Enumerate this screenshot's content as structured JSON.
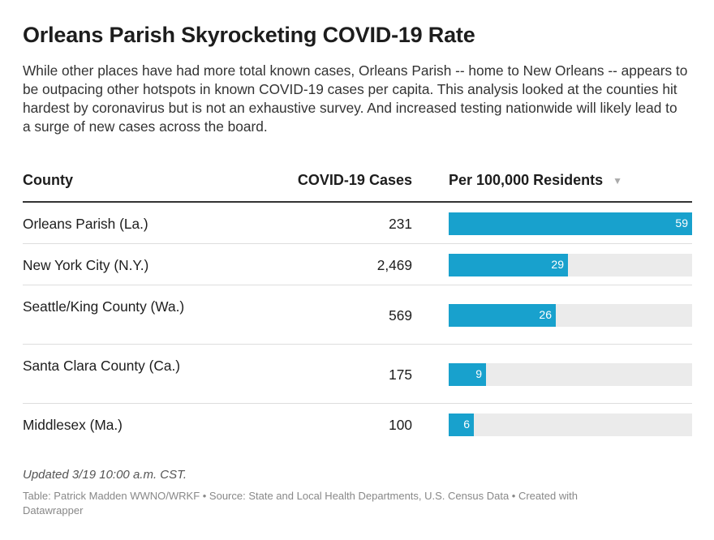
{
  "title": "Orleans Parish Skyrocketing COVID-19 Rate",
  "description": "While other places have had more total known cases, Orleans Parish -- home to New Orleans -- appears to be outpacing other hotspots in known COVID-19 cases per capita. This analysis looked at the counties hit hardest by coronavirus but is not an exhaustive survey. And increased testing nationwide will likely lead to a surge of new cases across the board.",
  "headers": {
    "county": "County",
    "cases": "COVID-19 Cases",
    "per": "Per 100,000 Residents",
    "sort_icon": "▼"
  },
  "rows": [
    {
      "county": "Orleans Parish (La.)",
      "cases": "231",
      "per": "59"
    },
    {
      "county": "New York City (N.Y.)",
      "cases": "2,469",
      "per": "29"
    },
    {
      "county": "Seattle/King County (Wa.)",
      "cases": "569",
      "per": "26"
    },
    {
      "county": "Santa Clara County (Ca.)",
      "cases": "175",
      "per": "9"
    },
    {
      "county": "Middlesex (Ma.)",
      "cases": "100",
      "per": "6"
    }
  ],
  "updated": "Updated 3/19 10:00 a.m. CST.",
  "footer": "Table: Patrick Madden WWNO/WRKF • Source: State and Local Health Departments, U.S. Census Data • Created with Datawrapper",
  "colors": {
    "bar": "#18a1cd",
    "bar_bg": "#ebebeb"
  },
  "chart_data": {
    "type": "table",
    "columns": [
      "County",
      "COVID-19 Cases",
      "Per 100,000 Residents"
    ],
    "categories": [
      "Orleans Parish (La.)",
      "New York City (N.Y.)",
      "Seattle/King County (Wa.)",
      "Santa Clara County (Ca.)",
      "Middlesex (Ma.)"
    ],
    "series": [
      {
        "name": "COVID-19 Cases",
        "values": [
          231,
          2469,
          569,
          175,
          100
        ]
      },
      {
        "name": "Per 100,000 Residents",
        "values": [
          59,
          29,
          26,
          9,
          6
        ]
      }
    ],
    "bar_max": 59
  }
}
